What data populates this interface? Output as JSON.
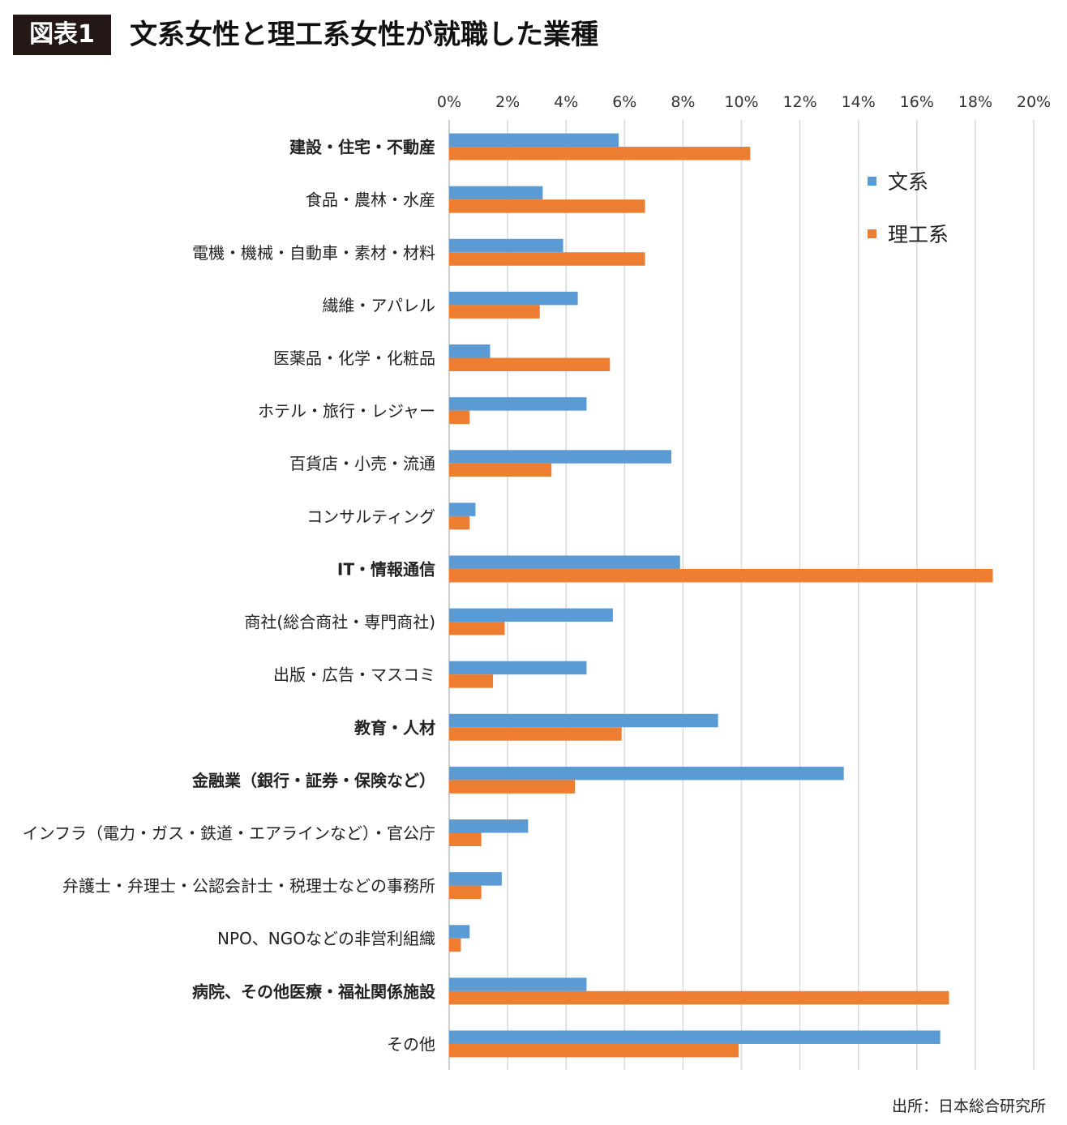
{
  "header": {
    "badge": "図表1",
    "title": "文系女性と理工系女性が就職した業種"
  },
  "source": "出所：日本総合研究所",
  "colors": {
    "bunkei": "#5b9bd5",
    "rikou": "#ed7d31"
  },
  "chart_data": {
    "type": "bar",
    "orientation": "horizontal",
    "title": "",
    "xlabel": "",
    "ylabel": "",
    "xlim": [
      0,
      20
    ],
    "x_ticks": [
      "0%",
      "2%",
      "4%",
      "6%",
      "8%",
      "10%",
      "12%",
      "14%",
      "16%",
      "18%",
      "20%"
    ],
    "grid": true,
    "legend_position": "top-right",
    "categories": [
      "建設・住宅・不動産",
      "食品・農林・水産",
      "電機・機械・自動車・素材・材料",
      "繊維・アパレル",
      "医薬品・化学・化粧品",
      "ホテル・旅行・レジャー",
      "百貨店・小売・流通",
      "コンサルティング",
      "IT・情報通信",
      "商社(総合商社・専門商社)",
      "出版・広告・マスコミ",
      "教育・人材",
      "金融業（銀行・証券・保険など）",
      "インフラ（電力・ガス・鉄道・エアラインなど）・官公庁",
      "弁護士・弁理士・公認会計士・税理士などの事務所",
      "NPO、NGOなどの非営利組織",
      "病院、その他医療・福祉関係施設",
      "その他"
    ],
    "bold_categories": [
      "建設・住宅・不動産",
      "IT・情報通信",
      "教育・人材",
      "金融業（銀行・証券・保険など）",
      "病院、その他医療・福祉関係施設"
    ],
    "series": [
      {
        "name": "文系",
        "color": "#5b9bd5",
        "values": [
          5.8,
          3.2,
          3.9,
          4.4,
          1.4,
          4.7,
          7.6,
          0.9,
          7.9,
          5.6,
          4.7,
          9.2,
          13.5,
          2.7,
          1.8,
          0.7,
          4.7,
          16.8
        ]
      },
      {
        "name": "理工系",
        "color": "#ed7d31",
        "values": [
          10.3,
          6.7,
          6.7,
          3.1,
          5.5,
          0.7,
          3.5,
          0.7,
          18.6,
          1.9,
          1.5,
          5.9,
          4.3,
          1.1,
          1.1,
          0.4,
          17.1,
          9.9
        ]
      }
    ]
  }
}
